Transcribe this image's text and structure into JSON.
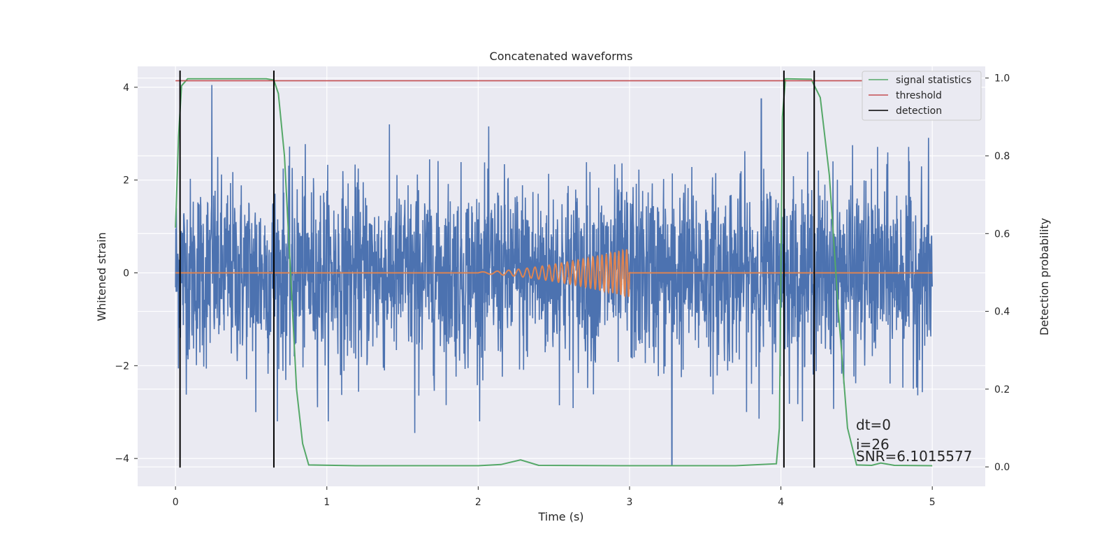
{
  "chart_data": {
    "type": "line",
    "title": "Concatenated waveforms",
    "xlabel": "Time (s)",
    "ylabel_left": "Whitened strain",
    "ylabel_right": "Detection probability",
    "xlim": [
      -0.25,
      5.35
    ],
    "ylim_left": [
      -4.6,
      4.45
    ],
    "ylim_right": [
      -0.05,
      1.03
    ],
    "xticks": [
      0,
      1,
      2,
      3,
      4,
      5
    ],
    "yticks_left": [
      -4,
      -2,
      0,
      2,
      4
    ],
    "yticks_right": [
      0.0,
      0.2,
      0.4,
      0.6,
      0.8,
      1.0
    ],
    "xtick_labels": [
      "0",
      "1",
      "2",
      "3",
      "4",
      "5"
    ],
    "ytick_labels_left": [
      "−4",
      "−2",
      "0",
      "2",
      "4"
    ],
    "ytick_labels_right": [
      "0.0",
      "0.2",
      "0.4",
      "0.6",
      "0.8",
      "1.0"
    ],
    "grid": true,
    "legend_position": "top-right",
    "colors": {
      "strain": "#4c72b0",
      "signal": "#dd8452",
      "statistics": "#55a868",
      "threshold": "#c44e52",
      "detection": "#000000",
      "background": "#eaeaf2"
    },
    "strain": {
      "x_range": [
        0,
        5
      ],
      "typical_amplitude": 1.0,
      "peaks": [
        {
          "x": 0.24,
          "y": 4.05
        },
        {
          "x": 3.87,
          "y": 3.75
        },
        {
          "x": 3.28,
          "y": -4.15
        },
        {
          "x": 1.58,
          "y": -3.45
        },
        {
          "x": 0.53,
          "y": -3.0
        }
      ]
    },
    "injected_signal": {
      "x_range": [
        2.0,
        3.0
      ],
      "start_amplitude": 0.02,
      "end_amplitude": 0.52,
      "start_frequency_hz": 8,
      "end_frequency_hz": 40
    },
    "signal_statistics": [
      [
        0.0,
        0.615
      ],
      [
        0.02,
        0.85
      ],
      [
        0.04,
        0.98
      ],
      [
        0.08,
        0.998
      ],
      [
        0.6,
        0.998
      ],
      [
        0.65,
        0.995
      ],
      [
        0.68,
        0.96
      ],
      [
        0.72,
        0.8
      ],
      [
        0.76,
        0.5
      ],
      [
        0.8,
        0.2
      ],
      [
        0.84,
        0.06
      ],
      [
        0.88,
        0.005
      ],
      [
        1.2,
        0.003
      ],
      [
        2.0,
        0.003
      ],
      [
        2.15,
        0.006
      ],
      [
        2.28,
        0.018
      ],
      [
        2.4,
        0.004
      ],
      [
        3.0,
        0.003
      ],
      [
        3.7,
        0.003
      ],
      [
        3.97,
        0.008
      ],
      [
        3.99,
        0.1
      ],
      [
        4.0,
        0.5
      ],
      [
        4.01,
        0.9
      ],
      [
        4.03,
        0.998
      ],
      [
        4.2,
        0.997
      ],
      [
        4.26,
        0.95
      ],
      [
        4.32,
        0.75
      ],
      [
        4.38,
        0.4
      ],
      [
        4.44,
        0.1
      ],
      [
        4.5,
        0.005
      ],
      [
        4.6,
        0.004
      ],
      [
        4.66,
        0.01
      ],
      [
        4.75,
        0.004
      ],
      [
        5.0,
        0.003
      ]
    ],
    "threshold": {
      "value": 0.993,
      "x_range": [
        0,
        5
      ]
    },
    "detections": [
      0.03,
      0.65,
      4.02,
      4.22
    ],
    "legend": [
      "signal statistics",
      "threshold",
      "detection"
    ],
    "annotations": [
      "dt=0",
      "i=26",
      "SNR=6.1015577"
    ]
  }
}
